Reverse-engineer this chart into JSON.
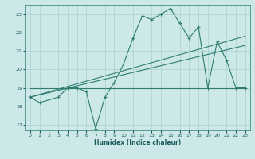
{
  "x": [
    0,
    1,
    3,
    4,
    5,
    6,
    7,
    8,
    9,
    10,
    11,
    12,
    13,
    14,
    15,
    16,
    17,
    18,
    19,
    20,
    21,
    22,
    23
  ],
  "y": [
    18.5,
    18.2,
    18.5,
    19.0,
    19.0,
    18.8,
    16.8,
    18.5,
    19.3,
    20.3,
    21.7,
    22.9,
    22.7,
    23.0,
    23.3,
    22.5,
    21.7,
    22.3,
    19.0,
    21.5,
    20.5,
    19.0,
    19.0
  ],
  "line_color": "#2e7d6e",
  "bg_color": "#cce8e8",
  "grid_color": "#aacfcf",
  "xlabel": "Humidex (Indice chaleur)",
  "xlim": [
    -0.5,
    23.5
  ],
  "ylim": [
    16.7,
    23.5
  ],
  "yticks": [
    17,
    18,
    19,
    20,
    21,
    22,
    23
  ],
  "xticks": [
    0,
    1,
    2,
    3,
    4,
    5,
    6,
    7,
    8,
    9,
    10,
    11,
    12,
    13,
    14,
    15,
    16,
    17,
    18,
    19,
    20,
    21,
    22,
    23
  ],
  "flat_line": {
    "x": [
      0,
      23
    ],
    "y": [
      19.0,
      19.0
    ]
  },
  "trend_low": {
    "x": [
      0,
      23
    ],
    "y": [
      18.5,
      21.3
    ]
  },
  "trend_high": {
    "x": [
      0,
      23
    ],
    "y": [
      18.5,
      21.8
    ]
  }
}
